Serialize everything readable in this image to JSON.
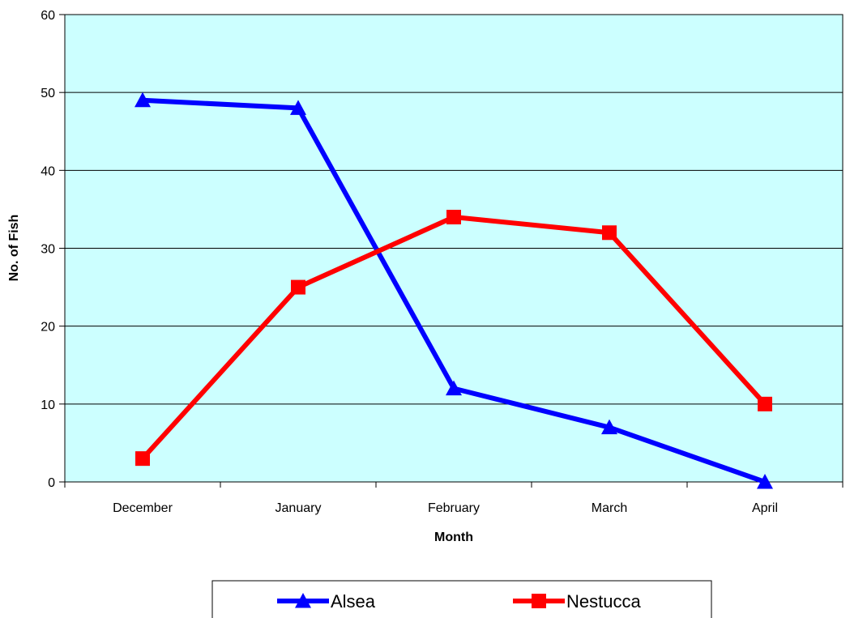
{
  "chart_data": {
    "type": "line",
    "title": "",
    "xlabel": "Month",
    "ylabel": "No. of Fish",
    "categories": [
      "December",
      "January",
      "February",
      "March",
      "April"
    ],
    "ylim": [
      0,
      60
    ],
    "yticks": [
      0,
      10,
      20,
      30,
      40,
      50,
      60
    ],
    "grid": true,
    "plot_background": "#ccffff",
    "legend_position": "bottom-center",
    "series": [
      {
        "name": "Alsea",
        "values": [
          49,
          48,
          12,
          7,
          0
        ],
        "color": "#0000ff",
        "marker": "triangle"
      },
      {
        "name": "Nestucca",
        "values": [
          3,
          25,
          34,
          32,
          10
        ],
        "color": "#ff0000",
        "marker": "square"
      }
    ]
  }
}
